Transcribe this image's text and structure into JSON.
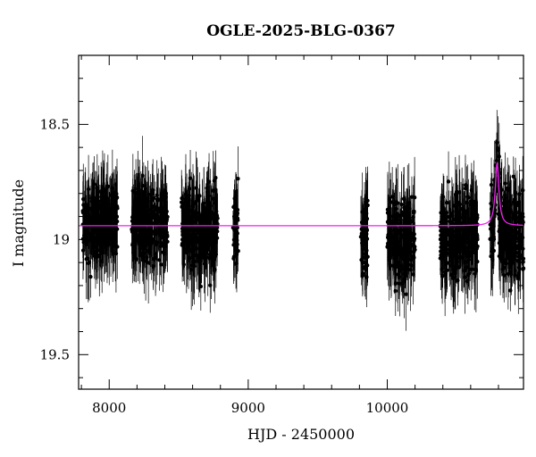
{
  "chart_data": {
    "type": "scatter",
    "title": "OGLE-2025-BLG-0367",
    "xlabel": "HJD - 2450000",
    "ylabel": "I magnitude",
    "xlim": [
      7780,
      10980
    ],
    "ylim": [
      19.65,
      18.2
    ],
    "y_inverted": true,
    "x_ticks": [
      8000,
      9000,
      10000
    ],
    "x_tick_labels": [
      "8000",
      "9000",
      "10000"
    ],
    "y_ticks": [
      18.5,
      19,
      19.5
    ],
    "y_tick_labels": [
      "18.5",
      "19",
      "19.5"
    ],
    "grid": false,
    "series": [
      {
        "kind": "errorbar-points",
        "color": "#000000",
        "mean_error": 0.12,
        "seasons": [
          {
            "x_start": 7810,
            "x_end": 8060,
            "y_center": 18.93,
            "y_spread": 0.11
          },
          {
            "x_start": 8160,
            "x_end": 8420,
            "y_center": 18.93,
            "y_spread": 0.11
          },
          {
            "x_start": 8520,
            "x_end": 8780,
            "y_center": 18.95,
            "y_spread": 0.12
          },
          {
            "x_start": 8890,
            "x_end": 8930,
            "y_center": 18.95,
            "y_spread": 0.1
          },
          {
            "x_start": 9810,
            "x_end": 9860,
            "y_center": 19.0,
            "y_spread": 0.12
          },
          {
            "x_start": 10000,
            "x_end": 10200,
            "y_center": 19.0,
            "y_spread": 0.12
          },
          {
            "x_start": 10380,
            "x_end": 10650,
            "y_center": 18.98,
            "y_spread": 0.12
          },
          {
            "x_start": 10740,
            "x_end": 10980,
            "y_center": 18.97,
            "y_spread": 0.13,
            "peak_x": 10790,
            "peak_y": 18.66
          }
        ]
      },
      {
        "kind": "model-curve",
        "color": "#ee22ee",
        "baseline": 18.94,
        "peak_x": 10790,
        "peak_y": 18.67,
        "timescale": 16
      }
    ]
  }
}
